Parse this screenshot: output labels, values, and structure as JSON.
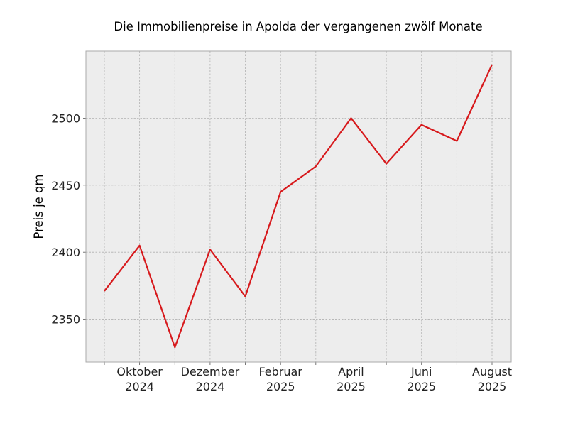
{
  "chart_data": {
    "type": "line",
    "title": "Die Immobilienpreise in Apolda der vergangenen zwölf Monate",
    "xlabel": "",
    "ylabel": "Preis je qm",
    "x": [
      "2024-09",
      "2024-10",
      "2024-11",
      "2024-12",
      "2025-01",
      "2025-02",
      "2025-03",
      "2025-04",
      "2025-05",
      "2025-06",
      "2025-07",
      "2025-08"
    ],
    "series": [
      {
        "values": [
          2371,
          2405,
          2329,
          2402,
          2367,
          2445,
          2464,
          2500,
          2466,
          2495,
          2483,
          2540
        ],
        "color": "#d7191c"
      }
    ],
    "x_tick_labels": [
      {
        "x": "2024-10",
        "month": "Oktober",
        "year": "2024"
      },
      {
        "x": "2024-12",
        "month": "Dezember",
        "year": "2024"
      },
      {
        "x": "2025-02",
        "month": "Februar",
        "year": "2025"
      },
      {
        "x": "2025-04",
        "month": "April",
        "year": "2025"
      },
      {
        "x": "2025-06",
        "month": "Juni",
        "year": "2025"
      },
      {
        "x": "2025-08",
        "month": "August",
        "year": "2025"
      }
    ],
    "yticks": [
      2350,
      2400,
      2450,
      2500
    ],
    "ylim": [
      2318,
      2550
    ],
    "grid": true,
    "background_color": "#ededed",
    "grid_color": "#b0b0b0"
  }
}
